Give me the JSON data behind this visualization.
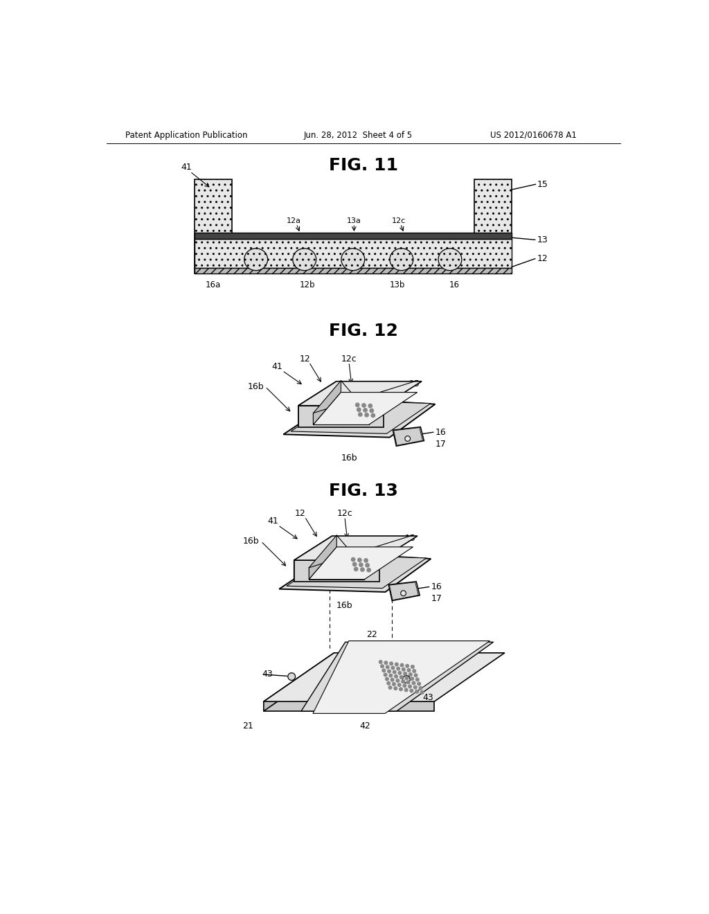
{
  "background_color": "#ffffff",
  "header_left": "Patent Application Publication",
  "header_center": "Jun. 28, 2012  Sheet 4 of 5",
  "header_right": "US 2012/0160678 A1",
  "fig11_title": "FIG. 11",
  "fig12_title": "FIG. 12",
  "fig13_title": "FIG. 13",
  "line_color": "#000000",
  "fill_light": "#f0f0f0",
  "fill_medium": "#d8d8d8",
  "fill_dark": "#aaaaaa"
}
